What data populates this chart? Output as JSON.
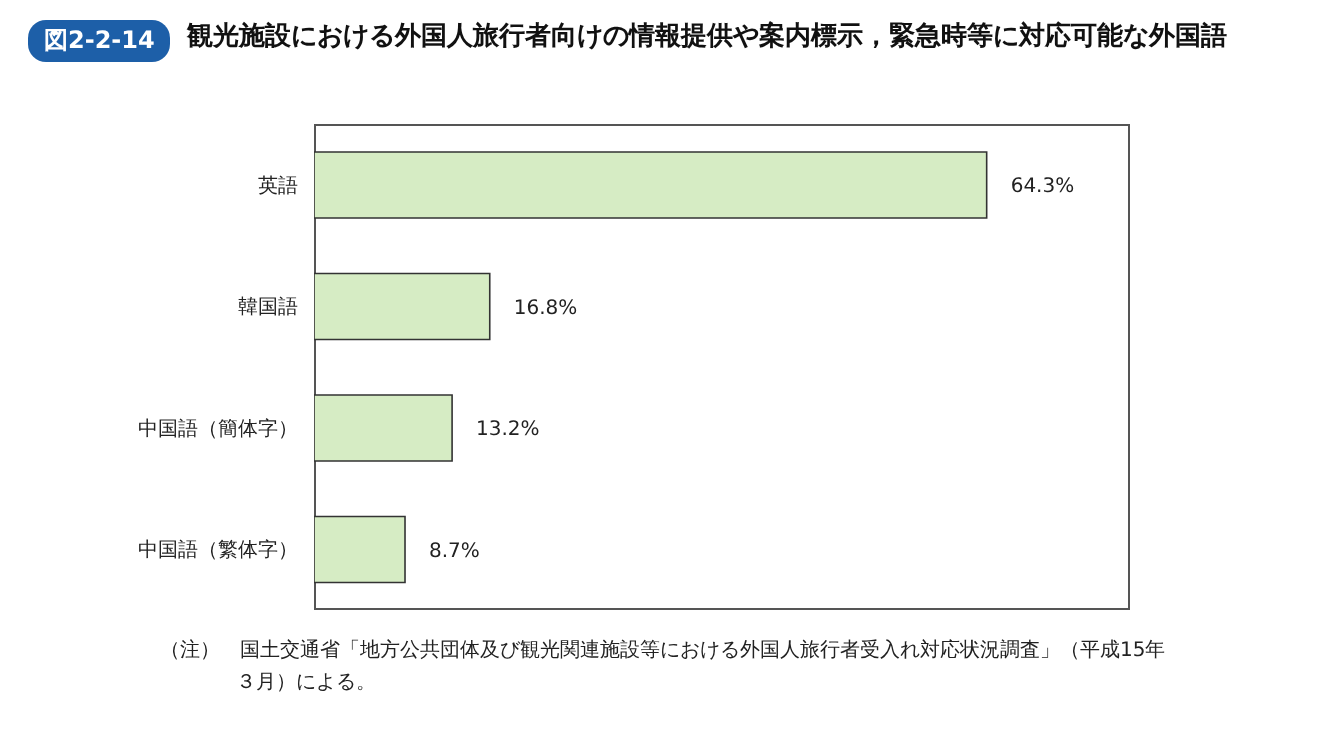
{
  "chart_data": {
    "type": "bar",
    "orientation": "horizontal",
    "title": "図2-2-14　観光施設における外国人旅行者向けの情報提供や案内標示，緊急時等に対応可能な外国語",
    "categories": [
      "英語",
      "韓国語",
      "中国語（簡体字）",
      "中国語（繁体字）"
    ],
    "values": [
      64.3,
      16.8,
      13.2,
      8.7
    ],
    "value_labels": [
      "64.3%",
      "16.8%",
      "13.2%",
      "8.7%"
    ],
    "color": "#d6ecc4",
    "xlim": [
      0,
      78
    ],
    "tick_labels": "y",
    "grid": false,
    "legend": false,
    "annotations": [
      "（注）　国土交通省「地方公共団体及び観光関連施設等における外国人旅行者受入れ対応状況調査」（平成15年３月）による。"
    ]
  }
}
